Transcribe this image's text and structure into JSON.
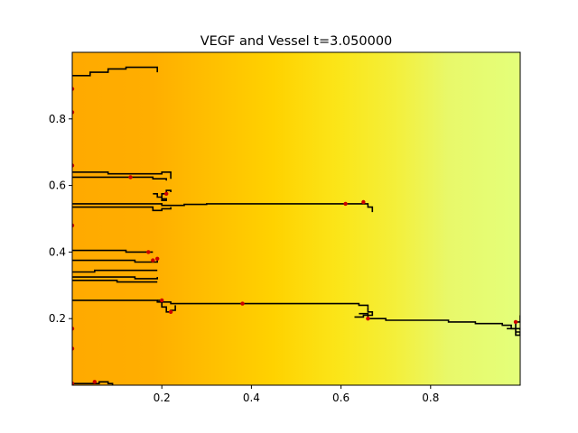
{
  "chart_data": {
    "type": "heatmap",
    "title": "VEGF and Vessel t=3.050000",
    "xlabel": "",
    "ylabel": "",
    "xlim": [
      0.0,
      1.0
    ],
    "ylim": [
      0.0,
      1.0
    ],
    "x_ticks": [
      {
        "value": 0.2,
        "label": "0.2"
      },
      {
        "value": 0.4,
        "label": "0.4"
      },
      {
        "value": 0.6,
        "label": "0.6"
      },
      {
        "value": 0.8,
        "label": "0.8"
      }
    ],
    "y_ticks": [
      {
        "value": 0.2,
        "label": "0.2"
      },
      {
        "value": 0.4,
        "label": "0.4"
      },
      {
        "value": 0.6,
        "label": "0.6"
      },
      {
        "value": 0.8,
        "label": "0.8"
      }
    ],
    "grid": false,
    "legend": "none",
    "colormap_stops": [
      {
        "x": 0.0,
        "color": "#ffaa00"
      },
      {
        "x": 0.18,
        "color": "#ffae00"
      },
      {
        "x": 0.45,
        "color": "#ffd200"
      },
      {
        "x": 0.6,
        "color": "#fbe61a"
      },
      {
        "x": 0.72,
        "color": "#f4ef3a"
      },
      {
        "x": 0.84,
        "color": "#e8f86a"
      },
      {
        "x": 1.0,
        "color": "#e4ff7a"
      }
    ],
    "vessel_color": "#000000",
    "tip_color": "#cc0000",
    "vessels": [
      [
        [
          0.0,
          0.93
        ],
        [
          0.04,
          0.94
        ],
        [
          0.08,
          0.95
        ],
        [
          0.12,
          0.955
        ],
        [
          0.16,
          0.955
        ],
        [
          0.19,
          0.955
        ],
        [
          0.19,
          0.94
        ]
      ],
      [
        [
          0.0,
          0.64
        ],
        [
          0.04,
          0.64
        ],
        [
          0.08,
          0.635
        ],
        [
          0.12,
          0.635
        ],
        [
          0.17,
          0.635
        ],
        [
          0.2,
          0.64
        ],
        [
          0.22,
          0.635
        ],
        [
          0.22,
          0.62
        ]
      ],
      [
        [
          0.0,
          0.625
        ],
        [
          0.06,
          0.625
        ],
        [
          0.12,
          0.625
        ],
        [
          0.18,
          0.62
        ],
        [
          0.21,
          0.615
        ]
      ],
      [
        [
          0.0,
          0.545
        ],
        [
          0.08,
          0.545
        ],
        [
          0.16,
          0.545
        ],
        [
          0.2,
          0.54
        ],
        [
          0.25,
          0.543
        ],
        [
          0.3,
          0.545
        ],
        [
          0.38,
          0.545
        ],
        [
          0.5,
          0.545
        ],
        [
          0.6,
          0.545
        ],
        [
          0.64,
          0.545
        ],
        [
          0.66,
          0.535
        ],
        [
          0.67,
          0.52
        ]
      ],
      [
        [
          0.0,
          0.535
        ],
        [
          0.1,
          0.535
        ],
        [
          0.17,
          0.535
        ],
        [
          0.18,
          0.525
        ],
        [
          0.2,
          0.53
        ],
        [
          0.22,
          0.535
        ]
      ],
      [
        [
          0.18,
          0.575
        ],
        [
          0.19,
          0.565
        ],
        [
          0.2,
          0.555
        ],
        [
          0.21,
          0.56
        ],
        [
          0.2,
          0.575
        ],
        [
          0.21,
          0.585
        ],
        [
          0.22,
          0.58
        ]
      ],
      [
        [
          0.0,
          0.405
        ],
        [
          0.06,
          0.405
        ],
        [
          0.12,
          0.4
        ],
        [
          0.18,
          0.4
        ]
      ],
      [
        [
          0.0,
          0.375
        ],
        [
          0.08,
          0.375
        ],
        [
          0.14,
          0.37
        ],
        [
          0.19,
          0.375
        ]
      ],
      [
        [
          0.0,
          0.34
        ],
        [
          0.05,
          0.345
        ],
        [
          0.12,
          0.345
        ],
        [
          0.19,
          0.345
        ]
      ],
      [
        [
          0.0,
          0.325
        ],
        [
          0.08,
          0.325
        ],
        [
          0.14,
          0.32
        ],
        [
          0.19,
          0.325
        ]
      ],
      [
        [
          0.0,
          0.315
        ],
        [
          0.1,
          0.31
        ],
        [
          0.19,
          0.31
        ]
      ],
      [
        [
          0.0,
          0.255
        ],
        [
          0.06,
          0.255
        ],
        [
          0.12,
          0.255
        ],
        [
          0.19,
          0.25
        ],
        [
          0.22,
          0.245
        ],
        [
          0.3,
          0.245
        ],
        [
          0.38,
          0.245
        ],
        [
          0.46,
          0.245
        ],
        [
          0.54,
          0.245
        ],
        [
          0.62,
          0.245
        ],
        [
          0.64,
          0.24
        ],
        [
          0.66,
          0.235
        ]
      ],
      [
        [
          0.64,
          0.215
        ],
        [
          0.66,
          0.2
        ],
        [
          0.7,
          0.195
        ],
        [
          0.76,
          0.195
        ],
        [
          0.84,
          0.19
        ],
        [
          0.9,
          0.185
        ],
        [
          0.96,
          0.18
        ],
        [
          0.98,
          0.17
        ],
        [
          1.0,
          0.165
        ]
      ],
      [
        [
          0.19,
          0.255
        ],
        [
          0.2,
          0.235
        ],
        [
          0.21,
          0.22
        ],
        [
          0.22,
          0.225
        ],
        [
          0.23,
          0.24
        ]
      ],
      [
        [
          0.63,
          0.205
        ],
        [
          0.65,
          0.21
        ],
        [
          0.67,
          0.22
        ],
        [
          0.66,
          0.235
        ]
      ],
      [
        [
          0.0,
          0.005
        ],
        [
          0.04,
          0.005
        ],
        [
          0.06,
          0.01
        ],
        [
          0.08,
          0.005
        ],
        [
          0.09,
          0.0
        ]
      ],
      [
        [
          0.97,
          0.17
        ],
        [
          0.99,
          0.16
        ],
        [
          1.0,
          0.15
        ],
        [
          0.99,
          0.19
        ],
        [
          1.0,
          0.21
        ]
      ]
    ],
    "tips": [
      [
        0.0,
        0.89
      ],
      [
        0.0,
        0.82
      ],
      [
        0.0,
        0.66
      ],
      [
        0.0,
        0.48
      ],
      [
        0.0,
        0.17
      ],
      [
        0.0,
        0.11
      ],
      [
        0.0,
        0.005
      ],
      [
        0.13,
        0.625
      ],
      [
        0.21,
        0.575
      ],
      [
        0.17,
        0.4
      ],
      [
        0.19,
        0.38
      ],
      [
        0.18,
        0.375
      ],
      [
        0.22,
        0.22
      ],
      [
        0.38,
        0.245
      ],
      [
        0.61,
        0.545
      ],
      [
        0.65,
        0.55
      ],
      [
        0.66,
        0.2
      ],
      [
        0.99,
        0.19
      ],
      [
        0.2,
        0.255
      ],
      [
        0.05,
        0.01
      ]
    ]
  }
}
